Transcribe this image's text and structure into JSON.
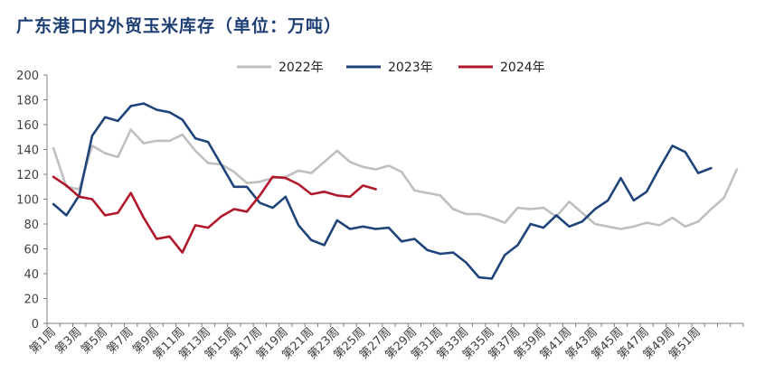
{
  "title": "广东港口内外贸玉米库存（单位：万吨）",
  "chart_data": {
    "type": "line",
    "title": "广东港口内外贸玉米库存（单位：万吨）",
    "xlabel": "",
    "ylabel": "",
    "ylim": [
      0,
      200
    ],
    "y_ticks": [
      "0",
      "20",
      "40",
      "60",
      "80",
      "100",
      "120",
      "140",
      "160",
      "180",
      "200"
    ],
    "x_ticks": [
      "第1周",
      "第3周",
      "第5周",
      "第7周",
      "第9周",
      "第11周",
      "第13周",
      "第15周",
      "第17周",
      "第19周",
      "第21周",
      "第23周",
      "第25周",
      "第27周",
      "第29周",
      "第31周",
      "第33周",
      "第35周",
      "第37周",
      "第39周",
      "第41周",
      "第43周",
      "第45周",
      "第47周",
      "第49周",
      "第51周"
    ],
    "grid": false,
    "legend_position": "top",
    "series": [
      {
        "name": "2022年",
        "color": "#bfbfbf",
        "values": [
          141,
          110,
          108,
          143,
          137,
          134,
          156,
          145,
          147,
          147,
          152,
          139,
          129,
          128,
          122,
          113,
          114,
          117,
          118,
          123,
          121,
          130,
          139,
          130,
          126,
          124,
          127,
          122,
          107,
          105,
          103,
          92,
          88,
          88,
          85,
          81,
          93,
          92,
          93,
          86,
          98,
          89,
          80,
          78,
          76,
          78,
          81,
          79,
          85,
          78,
          82,
          92,
          101,
          124
        ]
      },
      {
        "name": "2023年",
        "color": "#1f4479",
        "values": [
          96,
          87,
          103,
          151,
          166,
          163,
          175,
          177,
          172,
          170,
          164,
          149,
          146,
          128,
          110,
          110,
          97,
          93,
          102,
          79,
          67,
          63,
          83,
          76,
          78,
          76,
          77,
          66,
          68,
          59,
          56,
          57,
          49,
          37,
          36,
          55,
          63,
          80,
          77,
          87,
          78,
          82,
          92,
          99,
          117,
          99,
          106,
          125,
          143,
          138,
          121,
          125
        ]
      },
      {
        "name": "2024年",
        "color": "#b1182b",
        "values": [
          118,
          111,
          102,
          100,
          87,
          89,
          105,
          85,
          68,
          70,
          57,
          79,
          77,
          86,
          92,
          90,
          103,
          118,
          117,
          112,
          104,
          106,
          103,
          102,
          111,
          108
        ]
      }
    ]
  }
}
